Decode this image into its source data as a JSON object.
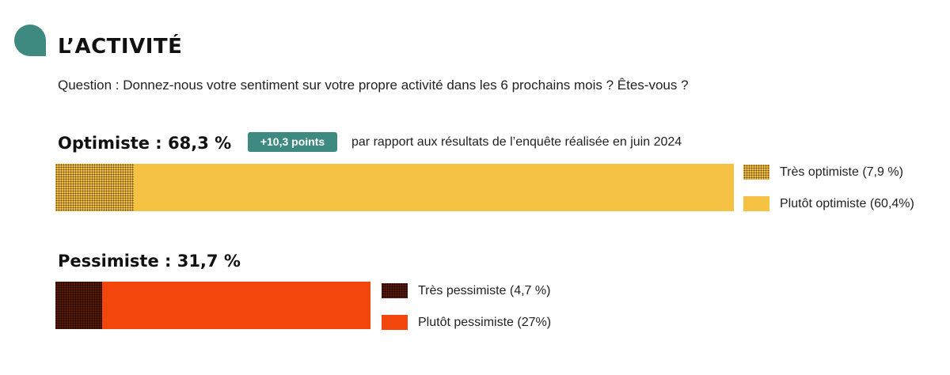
{
  "header": {
    "title": "L’ACTIVITÉ",
    "question": "Question : Donnez-nous votre sentiment sur votre propre activité dans les 6 prochains mois ? Êtes-vous ?"
  },
  "optimiste": {
    "label": "Optimiste : 68,3 %",
    "badge": "+10,3 points",
    "comparison": "par rapport aux résultats de l’enquête réalisée en juin 2024",
    "legend": [
      {
        "label": "Très optimiste (7,9 %)",
        "color": "#f4c24a"
      },
      {
        "label": "Plutôt optimiste (60,4%)",
        "color": "#f6c244"
      }
    ]
  },
  "pessimiste": {
    "label": "Pessimiste : 31,7 %",
    "legend": [
      {
        "label": "Très pessimiste (4,7 %)",
        "color": "#5a1a08"
      },
      {
        "label": "Plutôt pessimiste (27%)",
        "color": "#f2460c"
      }
    ]
  },
  "chart_data": {
    "type": "bar",
    "orientation": "horizontal",
    "stacked": true,
    "scale_max": 68.3,
    "bars": [
      {
        "name": "Optimiste",
        "total": 68.3,
        "segments": [
          {
            "name": "Très optimiste",
            "value": 7.9
          },
          {
            "name": "Plutôt optimiste",
            "value": 60.4
          }
        ]
      },
      {
        "name": "Pessimiste",
        "total": 31.7,
        "segments": [
          {
            "name": "Très pessimiste",
            "value": 4.7
          },
          {
            "name": "Plutôt pessimiste",
            "value": 27
          }
        ]
      }
    ]
  }
}
